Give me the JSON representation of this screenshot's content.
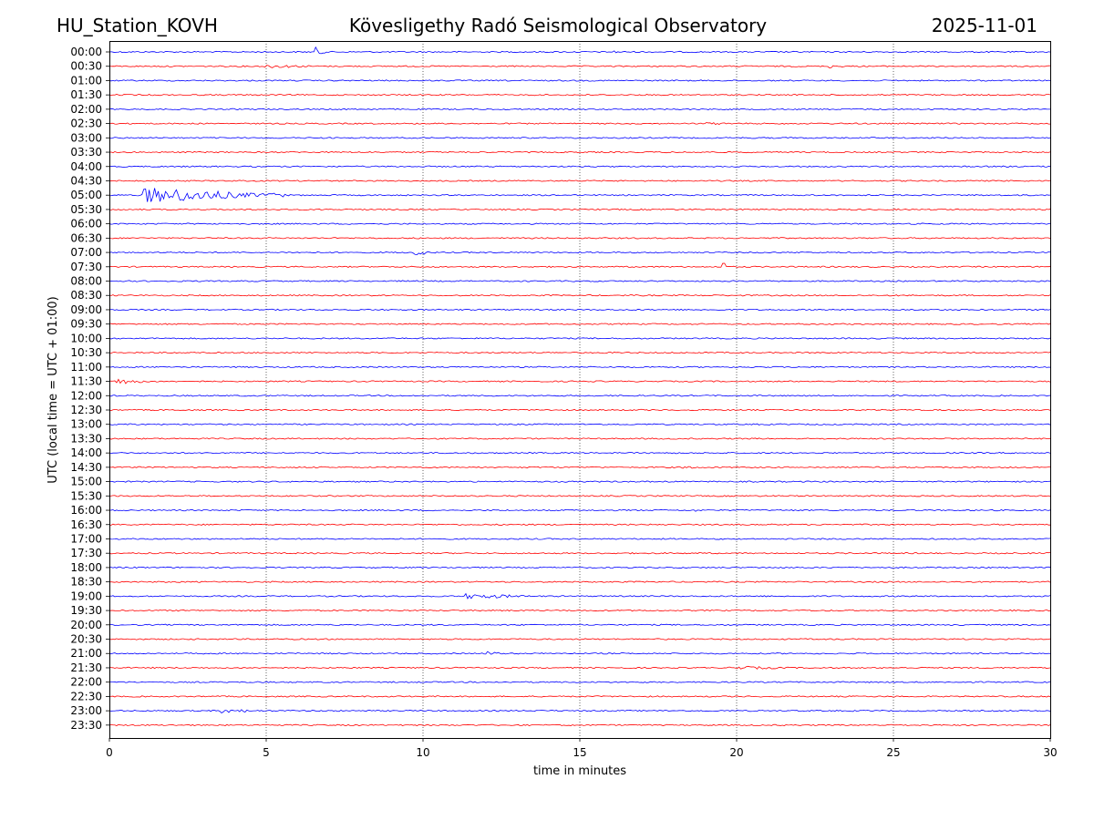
{
  "header": {
    "station": "HU_Station_KOVH",
    "title": "Kövesligethy Radó Seismological Observatory",
    "date": "2025-11-01"
  },
  "chart_data": {
    "type": "line",
    "title": "Kövesligethy Radó Seismological Observatory",
    "xlabel": "time in minutes",
    "ylabel": "UTC (local time = UTC + 01:00)",
    "xlim": [
      0,
      30
    ],
    "x_ticks": [
      "0",
      "5",
      "10",
      "15",
      "20",
      "25",
      "30"
    ],
    "grid": "vertical dotted lines at x = 5, 10, 15, 20, 25",
    "colors": {
      "even_hour": "#0000ff",
      "half_hour": "#ff0000",
      "grid": "#000000"
    },
    "series": [
      {
        "name": "00:00",
        "color": "blue",
        "events": [
          {
            "t": 6.6,
            "amp": 5,
            "dur": 0.3
          },
          {
            "t": 16.1,
            "amp": 1.5,
            "dur": 0.6
          }
        ]
      },
      {
        "name": "00:30",
        "color": "red",
        "events": [
          {
            "t": 5.0,
            "amp": 2,
            "dur": 2.5
          },
          {
            "t": 23.0,
            "amp": 2,
            "dur": 0.6
          }
        ]
      },
      {
        "name": "01:00",
        "color": "blue",
        "events": []
      },
      {
        "name": "01:30",
        "color": "red",
        "events": []
      },
      {
        "name": "02:00",
        "color": "blue",
        "events": []
      },
      {
        "name": "02:30",
        "color": "red",
        "events": [
          {
            "t": 19.0,
            "amp": 1.2,
            "dur": 3.5
          }
        ]
      },
      {
        "name": "03:00",
        "color": "blue",
        "events": []
      },
      {
        "name": "03:30",
        "color": "red",
        "events": []
      },
      {
        "name": "04:00",
        "color": "blue",
        "events": []
      },
      {
        "name": "04:30",
        "color": "red",
        "events": []
      },
      {
        "name": "05:00",
        "color": "blue",
        "events": [
          {
            "t": 1.1,
            "amp": 9,
            "dur": 4.5
          }
        ]
      },
      {
        "name": "05:30",
        "color": "red",
        "events": []
      },
      {
        "name": "06:00",
        "color": "blue",
        "events": []
      },
      {
        "name": "06:30",
        "color": "red",
        "events": []
      },
      {
        "name": "07:00",
        "color": "blue",
        "events": [
          {
            "t": 9.7,
            "amp": 5,
            "dur": 0.5
          }
        ]
      },
      {
        "name": "07:30",
        "color": "red",
        "events": [
          {
            "t": 19.6,
            "amp": 5,
            "dur": 0.2
          }
        ]
      },
      {
        "name": "08:00",
        "color": "blue",
        "events": []
      },
      {
        "name": "08:30",
        "color": "red",
        "events": []
      },
      {
        "name": "09:00",
        "color": "blue",
        "events": []
      },
      {
        "name": "09:30",
        "color": "red",
        "events": []
      },
      {
        "name": "10:00",
        "color": "blue",
        "events": []
      },
      {
        "name": "10:30",
        "color": "red",
        "events": []
      },
      {
        "name": "11:00",
        "color": "blue",
        "events": []
      },
      {
        "name": "11:30",
        "color": "red",
        "events": [
          {
            "t": 0.2,
            "amp": 3.5,
            "dur": 1.3
          }
        ]
      },
      {
        "name": "12:00",
        "color": "blue",
        "events": []
      },
      {
        "name": "12:30",
        "color": "red",
        "events": []
      },
      {
        "name": "13:00",
        "color": "blue",
        "events": []
      },
      {
        "name": "13:30",
        "color": "red",
        "events": []
      },
      {
        "name": "14:00",
        "color": "blue",
        "events": []
      },
      {
        "name": "14:30",
        "color": "red",
        "events": [
          {
            "t": 18.3,
            "amp": 1.5,
            "dur": 2.0
          }
        ]
      },
      {
        "name": "15:00",
        "color": "blue",
        "events": []
      },
      {
        "name": "15:30",
        "color": "red",
        "events": []
      },
      {
        "name": "16:00",
        "color": "blue",
        "events": [
          {
            "t": 18.7,
            "amp": 1.5,
            "dur": 0.5
          }
        ]
      },
      {
        "name": "16:30",
        "color": "red",
        "events": []
      },
      {
        "name": "17:00",
        "color": "blue",
        "events": []
      },
      {
        "name": "17:30",
        "color": "red",
        "events": []
      },
      {
        "name": "18:00",
        "color": "blue",
        "events": []
      },
      {
        "name": "18:30",
        "color": "red",
        "events": []
      },
      {
        "name": "19:00",
        "color": "blue",
        "events": [
          {
            "t": 11.4,
            "amp": 3,
            "dur": 2.7
          }
        ]
      },
      {
        "name": "19:30",
        "color": "red",
        "events": []
      },
      {
        "name": "20:00",
        "color": "blue",
        "events": []
      },
      {
        "name": "20:30",
        "color": "red",
        "events": []
      },
      {
        "name": "21:00",
        "color": "blue",
        "events": [
          {
            "t": 12.0,
            "amp": 2.5,
            "dur": 0.8
          }
        ]
      },
      {
        "name": "21:30",
        "color": "red",
        "events": [
          {
            "t": 19.8,
            "amp": 2,
            "dur": 3.0
          }
        ]
      },
      {
        "name": "22:00",
        "color": "blue",
        "events": []
      },
      {
        "name": "22:30",
        "color": "red",
        "events": []
      },
      {
        "name": "23:00",
        "color": "blue",
        "events": [
          {
            "t": 3.6,
            "amp": 2.5,
            "dur": 1.7
          }
        ]
      },
      {
        "name": "23:30",
        "color": "red",
        "events": []
      }
    ]
  }
}
